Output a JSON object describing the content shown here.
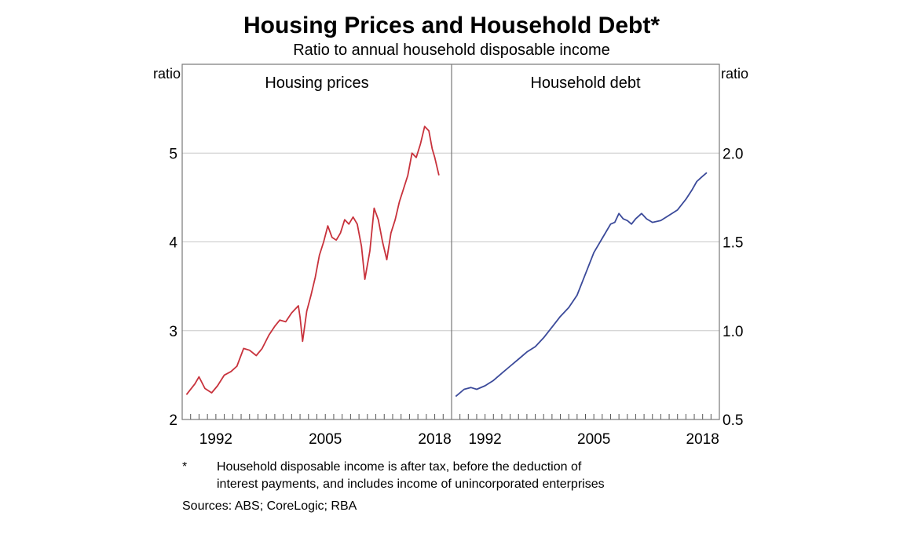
{
  "chart_data": {
    "type": "line",
    "title": "Housing Prices and Household Debt*",
    "subtitle": "Ratio to annual household disposable income",
    "grid": true,
    "panels": [
      {
        "title": "Housing prices",
        "axis_label": "ratio",
        "axis_side": "left",
        "ylim": [
          2,
          6
        ],
        "yticks": [
          2,
          3,
          4,
          5
        ],
        "ytick_labels": [
          "2",
          "3",
          "4",
          "5"
        ],
        "xlim": [
          1988,
          2020
        ],
        "xticks": [
          1992,
          2005,
          2018
        ],
        "xtick_labels": [
          "1992",
          "2005",
          "2018"
        ],
        "series": [
          {
            "color": "#c8323c",
            "points": [
              [
                1988.5,
                2.28
              ],
              [
                1989.5,
                2.4
              ],
              [
                1990.0,
                2.48
              ],
              [
                1990.7,
                2.35
              ],
              [
                1991.5,
                2.3
              ],
              [
                1992.2,
                2.38
              ],
              [
                1993.0,
                2.5
              ],
              [
                1993.8,
                2.54
              ],
              [
                1994.5,
                2.6
              ],
              [
                1995.3,
                2.8
              ],
              [
                1996.0,
                2.78
              ],
              [
                1996.8,
                2.72
              ],
              [
                1997.5,
                2.8
              ],
              [
                1998.3,
                2.95
              ],
              [
                1999.0,
                3.05
              ],
              [
                1999.6,
                3.12
              ],
              [
                2000.3,
                3.1
              ],
              [
                2001.0,
                3.2
              ],
              [
                2001.8,
                3.28
              ],
              [
                2002.0,
                3.15
              ],
              [
                2002.3,
                2.88
              ],
              [
                2002.8,
                3.22
              ],
              [
                2003.3,
                3.4
              ],
              [
                2003.8,
                3.6
              ],
              [
                2004.3,
                3.85
              ],
              [
                2004.8,
                4.0
              ],
              [
                2005.3,
                4.18
              ],
              [
                2005.8,
                4.05
              ],
              [
                2006.3,
                4.02
              ],
              [
                2006.8,
                4.1
              ],
              [
                2007.3,
                4.25
              ],
              [
                2007.8,
                4.2
              ],
              [
                2008.3,
                4.28
              ],
              [
                2008.8,
                4.2
              ],
              [
                2009.3,
                3.95
              ],
              [
                2009.7,
                3.58
              ],
              [
                2010.3,
                3.9
              ],
              [
                2010.8,
                4.38
              ],
              [
                2011.3,
                4.25
              ],
              [
                2011.8,
                4.0
              ],
              [
                2012.3,
                3.8
              ],
              [
                2012.8,
                4.1
              ],
              [
                2013.3,
                4.25
              ],
              [
                2013.8,
                4.45
              ],
              [
                2014.3,
                4.6
              ],
              [
                2014.8,
                4.75
              ],
              [
                2015.3,
                5.0
              ],
              [
                2015.8,
                4.95
              ],
              [
                2016.3,
                5.1
              ],
              [
                2016.8,
                5.3
              ],
              [
                2017.3,
                5.25
              ],
              [
                2017.7,
                5.05
              ],
              [
                2018.0,
                4.95
              ],
              [
                2018.5,
                4.75
              ]
            ]
          }
        ]
      },
      {
        "title": "Household debt",
        "axis_label": "ratio",
        "axis_side": "right",
        "ylim": [
          0.5,
          2.5
        ],
        "yticks": [
          0.5,
          1.0,
          1.5,
          2.0
        ],
        "ytick_labels": [
          "0.5",
          "1.0",
          "1.5",
          "2.0"
        ],
        "xlim": [
          1988,
          2020
        ],
        "xticks": [
          1992,
          2005,
          2018
        ],
        "xtick_labels": [
          "1992",
          "2005",
          "2018"
        ],
        "series": [
          {
            "color": "#3b4a9a",
            "points": [
              [
                1988.5,
                0.63
              ],
              [
                1989.5,
                0.67
              ],
              [
                1990.3,
                0.68
              ],
              [
                1991.0,
                0.67
              ],
              [
                1992.0,
                0.69
              ],
              [
                1993.0,
                0.72
              ],
              [
                1994.0,
                0.76
              ],
              [
                1995.0,
                0.8
              ],
              [
                1996.0,
                0.84
              ],
              [
                1997.0,
                0.88
              ],
              [
                1998.0,
                0.91
              ],
              [
                1999.0,
                0.96
              ],
              [
                2000.0,
                1.02
              ],
              [
                2001.0,
                1.08
              ],
              [
                2002.0,
                1.13
              ],
              [
                2003.0,
                1.2
              ],
              [
                2004.0,
                1.32
              ],
              [
                2005.0,
                1.44
              ],
              [
                2006.0,
                1.52
              ],
              [
                2007.0,
                1.6
              ],
              [
                2007.5,
                1.61
              ],
              [
                2008.0,
                1.66
              ],
              [
                2008.5,
                1.63
              ],
              [
                2009.0,
                1.62
              ],
              [
                2009.5,
                1.6
              ],
              [
                2010.0,
                1.63
              ],
              [
                2010.7,
                1.66
              ],
              [
                2011.3,
                1.63
              ],
              [
                2012.0,
                1.61
              ],
              [
                2013.0,
                1.62
              ],
              [
                2014.0,
                1.65
              ],
              [
                2015.0,
                1.68
              ],
              [
                2016.0,
                1.74
              ],
              [
                2016.7,
                1.79
              ],
              [
                2017.3,
                1.84
              ],
              [
                2018.0,
                1.87
              ],
              [
                2018.5,
                1.89
              ]
            ]
          }
        ]
      }
    ],
    "footnote_marker": "*",
    "footnote_lines": [
      "Household disposable income is after tax, before the deduction of",
      "interest payments, and includes income of unincorporated enterprises"
    ],
    "sources": "Sources: ABS; CoreLogic; RBA"
  }
}
